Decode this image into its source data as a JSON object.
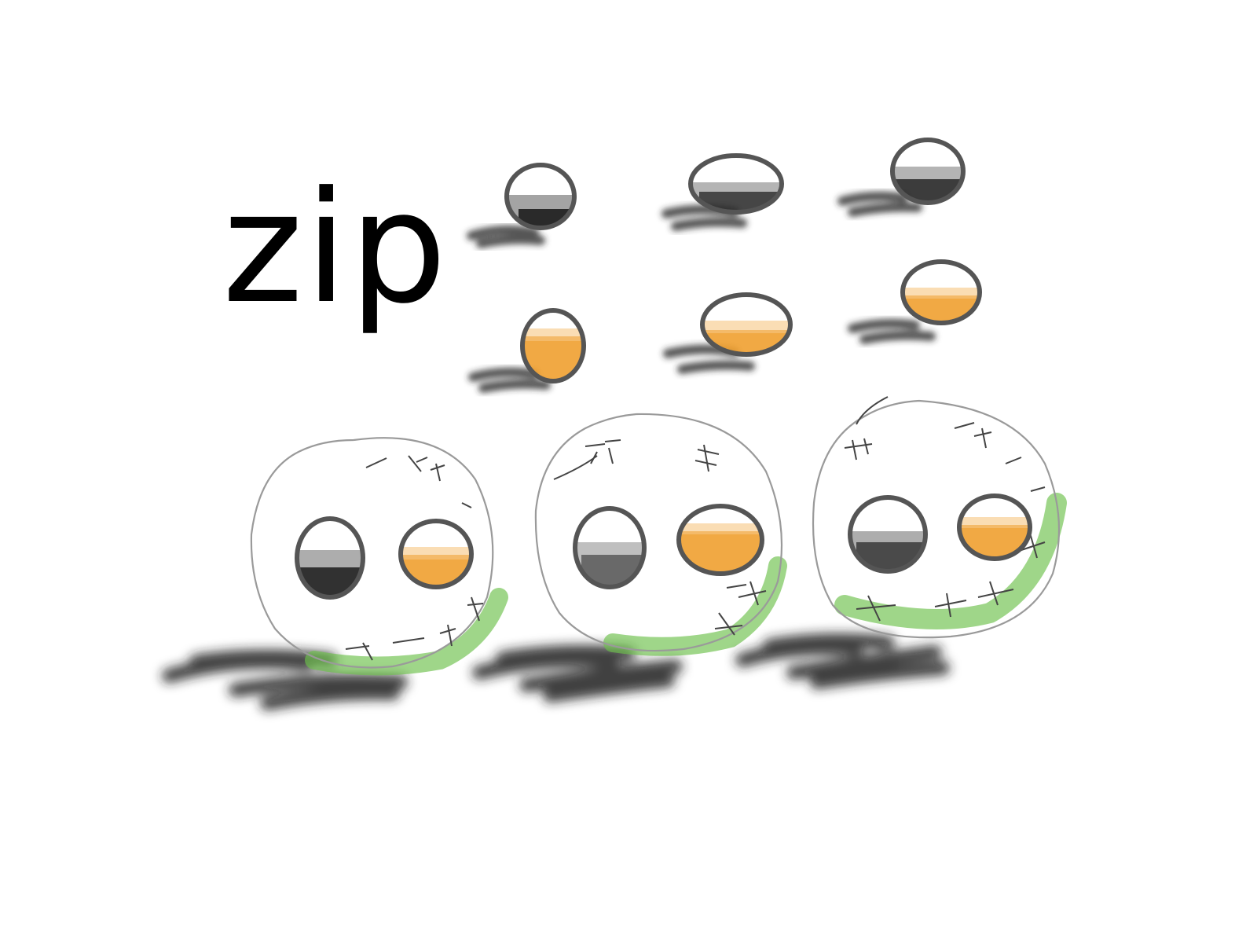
{
  "label": "zip",
  "colors": {
    "outline": "#555555",
    "thin_outline": "#9a9a9a",
    "black_fill": "#1e1e1e",
    "orange_fill": "#f0a030",
    "green_band": "#6cc04a",
    "shadow": "#2a2a2a"
  }
}
